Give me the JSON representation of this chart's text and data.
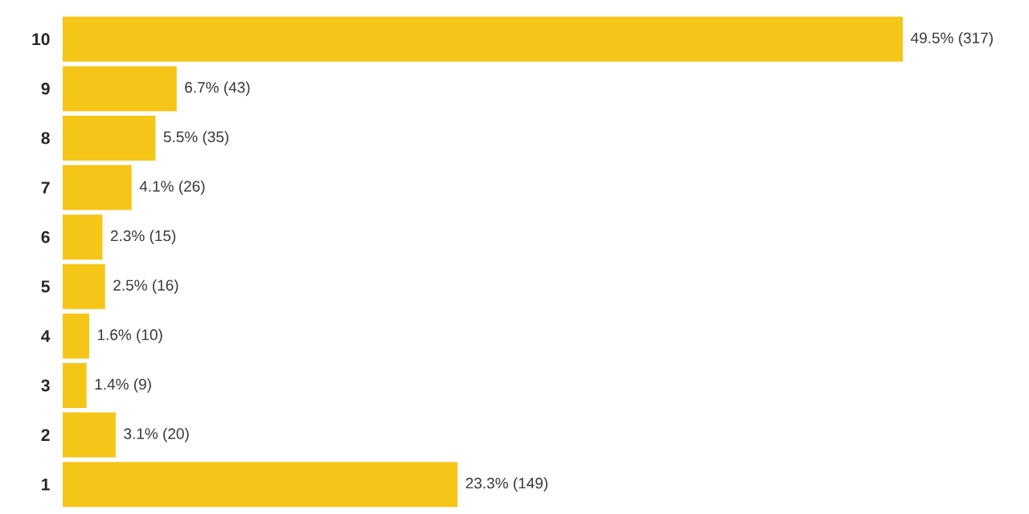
{
  "chart_data": {
    "type": "bar",
    "orientation": "horizontal",
    "categories": [
      "10",
      "9",
      "8",
      "7",
      "6",
      "5",
      "4",
      "3",
      "2",
      "1"
    ],
    "values": [
      317,
      43,
      35,
      26,
      15,
      16,
      10,
      9,
      20,
      149
    ],
    "value_labels": [
      "49.5% (317)",
      "6.7% (43)",
      "5.5% (35)",
      "4.1% (26)",
      "2.3% (15)",
      "2.5% (16)",
      "1.6% (10)",
      "1.4% (9)",
      "3.1% (20)",
      "23.3% (149)"
    ],
    "color": "#f5c518",
    "tick_labels": "y"
  }
}
